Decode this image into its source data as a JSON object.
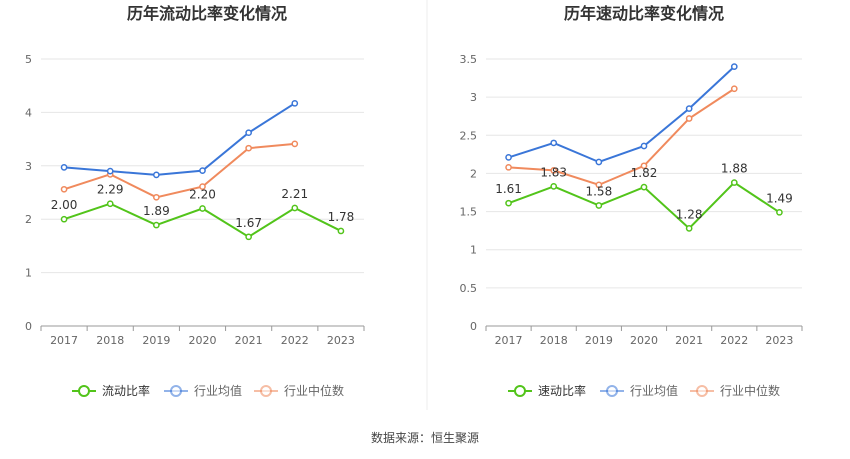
{
  "chart_data": [
    {
      "type": "line",
      "title": "历年流动比率变化情况",
      "categories": [
        "2017",
        "2018",
        "2019",
        "2020",
        "2021",
        "2022",
        "2023"
      ],
      "ylim": [
        0,
        5
      ],
      "yticks": [
        "0",
        "1",
        "2",
        "3",
        "4",
        "5"
      ],
      "series": [
        {
          "name": "流动比率",
          "color": "#52c41a",
          "values": [
            2.0,
            2.29,
            1.89,
            2.2,
            1.67,
            2.21,
            1.78
          ],
          "labels": [
            "2.00",
            "2.29",
            "1.89",
            "2.20",
            "1.67",
            "2.21",
            "1.78"
          ]
        },
        {
          "name": "行业均值",
          "color": "#3a76d8",
          "values": [
            2.97,
            2.9,
            2.83,
            2.91,
            3.62,
            4.17,
            null
          ]
        },
        {
          "name": "行业中位数",
          "color": "#f08a5d",
          "values": [
            2.56,
            2.84,
            2.41,
            2.61,
            3.33,
            3.41,
            null
          ]
        }
      ]
    },
    {
      "type": "line",
      "title": "历年速动比率变化情况",
      "categories": [
        "2017",
        "2018",
        "2019",
        "2020",
        "2021",
        "2022",
        "2023"
      ],
      "ylim": [
        0,
        3.5
      ],
      "yticks": [
        "0",
        "0.5",
        "1",
        "1.5",
        "2",
        "2.5",
        "3",
        "3.5"
      ],
      "series": [
        {
          "name": "速动比率",
          "color": "#52c41a",
          "values": [
            1.61,
            1.83,
            1.58,
            1.82,
            1.28,
            1.88,
            1.49
          ],
          "labels": [
            "1.61",
            "1.83",
            "1.58",
            "1.82",
            "1.28",
            "1.88",
            "1.49"
          ]
        },
        {
          "name": "行业均值",
          "color": "#3a76d8",
          "values": [
            2.21,
            2.4,
            2.15,
            2.36,
            2.85,
            3.4,
            null
          ]
        },
        {
          "name": "行业中位数",
          "color": "#f08a5d",
          "values": [
            2.08,
            2.04,
            1.85,
            2.1,
            2.72,
            3.11,
            null
          ]
        }
      ]
    }
  ],
  "footer": {
    "source_label": "数据来源：",
    "source_name": "恒生聚源"
  }
}
